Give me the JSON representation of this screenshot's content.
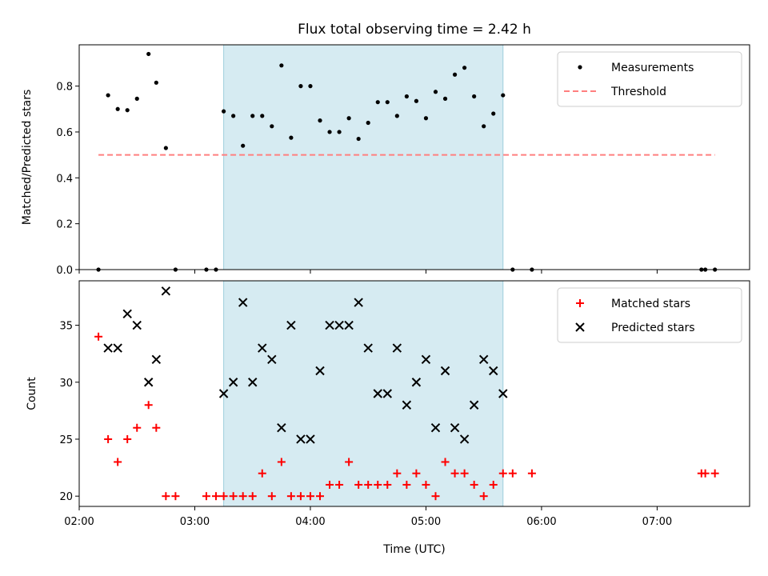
{
  "chart_data": [
    {
      "type": "scatter",
      "title": "Flux total observing time = 2.42 h",
      "ylabel": "Matched/Predicted stars",
      "xlabel": "",
      "xlim": [
        "02:00",
        "07:48"
      ],
      "ylim": [
        0,
        0.98
      ],
      "yticks": [
        "0.0",
        "0.2",
        "0.4",
        "0.6",
        "0.8"
      ],
      "shaded_span": {
        "start": "03:15",
        "end": "05:40",
        "color": "#add8e6"
      },
      "legend_position": "upper right",
      "series": [
        {
          "name": "Measurements",
          "marker": "dot",
          "color": "#000000",
          "points": [
            [
              "02:10",
              0.0
            ],
            [
              "02:15",
              0.76
            ],
            [
              "02:20",
              0.7
            ],
            [
              "02:25",
              0.695
            ],
            [
              "02:30",
              0.745
            ],
            [
              "02:36",
              0.94
            ],
            [
              "02:40",
              0.815
            ],
            [
              "02:45",
              0.53
            ],
            [
              "02:50",
              0.0
            ],
            [
              "03:06",
              0.0
            ],
            [
              "03:11",
              0.0
            ],
            [
              "03:15",
              0.69
            ],
            [
              "03:20",
              0.67
            ],
            [
              "03:25",
              0.54
            ],
            [
              "03:30",
              0.67
            ],
            [
              "03:35",
              0.67
            ],
            [
              "03:40",
              0.625
            ],
            [
              "03:45",
              0.89
            ],
            [
              "03:50",
              0.575
            ],
            [
              "03:55",
              0.8
            ],
            [
              "04:00",
              0.8
            ],
            [
              "04:05",
              0.65
            ],
            [
              "04:10",
              0.6
            ],
            [
              "04:15",
              0.6
            ],
            [
              "04:20",
              0.66
            ],
            [
              "04:25",
              0.57
            ],
            [
              "04:30",
              0.64
            ],
            [
              "04:35",
              0.73
            ],
            [
              "04:40",
              0.73
            ],
            [
              "04:45",
              0.67
            ],
            [
              "04:50",
              0.755
            ],
            [
              "04:55",
              0.735
            ],
            [
              "05:00",
              0.66
            ],
            [
              "05:05",
              0.775
            ],
            [
              "05:10",
              0.745
            ],
            [
              "05:15",
              0.85
            ],
            [
              "05:20",
              0.88
            ],
            [
              "05:25",
              0.755
            ],
            [
              "05:30",
              0.625
            ],
            [
              "05:35",
              0.68
            ],
            [
              "05:40",
              0.76
            ],
            [
              "05:45",
              0.0
            ],
            [
              "05:55",
              0.0
            ],
            [
              "07:23",
              0.0
            ],
            [
              "07:25",
              0.0
            ],
            [
              "07:30",
              0.0
            ]
          ]
        },
        {
          "name": "Threshold",
          "marker": "dashed-line",
          "color": "#ff7f7f",
          "points": [
            [
              "02:10",
              0.5
            ],
            [
              "07:30",
              0.5
            ]
          ]
        }
      ]
    },
    {
      "type": "scatter",
      "title": "",
      "ylabel": "Count",
      "xlabel": "Time (UTC)",
      "xlim": [
        "02:00",
        "07:48"
      ],
      "ylim": [
        19.1,
        38.9
      ],
      "yticks": [
        "20",
        "25",
        "30",
        "35"
      ],
      "xticks": [
        "02:00",
        "03:00",
        "04:00",
        "05:00",
        "06:00",
        "07:00"
      ],
      "shaded_span": {
        "start": "03:15",
        "end": "05:40",
        "color": "#add8e6"
      },
      "legend_position": "upper right",
      "series": [
        {
          "name": "Matched stars",
          "marker": "plus",
          "color": "#ff0000",
          "points": [
            [
              "02:10",
              34
            ],
            [
              "02:15",
              25
            ],
            [
              "02:20",
              23
            ],
            [
              "02:25",
              25
            ],
            [
              "02:30",
              26
            ],
            [
              "02:36",
              28
            ],
            [
              "02:40",
              26
            ],
            [
              "02:45",
              20
            ],
            [
              "02:50",
              20
            ],
            [
              "03:06",
              20
            ],
            [
              "03:11",
              20
            ],
            [
              "03:15",
              20
            ],
            [
              "03:20",
              20
            ],
            [
              "03:25",
              20
            ],
            [
              "03:30",
              20
            ],
            [
              "03:35",
              22
            ],
            [
              "03:40",
              20
            ],
            [
              "03:45",
              23
            ],
            [
              "03:50",
              20
            ],
            [
              "03:55",
              20
            ],
            [
              "04:00",
              20
            ],
            [
              "04:05",
              20
            ],
            [
              "04:10",
              21
            ],
            [
              "04:15",
              21
            ],
            [
              "04:20",
              23
            ],
            [
              "04:25",
              21
            ],
            [
              "04:30",
              21
            ],
            [
              "04:35",
              21
            ],
            [
              "04:40",
              21
            ],
            [
              "04:45",
              22
            ],
            [
              "04:50",
              21
            ],
            [
              "04:55",
              22
            ],
            [
              "05:00",
              21
            ],
            [
              "05:05",
              20
            ],
            [
              "05:10",
              23
            ],
            [
              "05:15",
              22
            ],
            [
              "05:20",
              22
            ],
            [
              "05:25",
              21
            ],
            [
              "05:30",
              20
            ],
            [
              "05:35",
              21
            ],
            [
              "05:40",
              22
            ],
            [
              "05:45",
              22
            ],
            [
              "05:55",
              22
            ],
            [
              "07:23",
              22
            ],
            [
              "07:25",
              22
            ],
            [
              "07:30",
              22
            ]
          ]
        },
        {
          "name": "Predicted stars",
          "marker": "x",
          "color": "#000000",
          "points": [
            [
              "02:15",
              33
            ],
            [
              "02:20",
              33
            ],
            [
              "02:25",
              36
            ],
            [
              "02:30",
              35
            ],
            [
              "02:36",
              30
            ],
            [
              "02:40",
              32
            ],
            [
              "02:45",
              38
            ],
            [
              "03:15",
              29
            ],
            [
              "03:20",
              30
            ],
            [
              "03:25",
              37
            ],
            [
              "03:30",
              30
            ],
            [
              "03:35",
              33
            ],
            [
              "03:40",
              32
            ],
            [
              "03:45",
              26
            ],
            [
              "03:50",
              35
            ],
            [
              "03:55",
              25
            ],
            [
              "04:00",
              25
            ],
            [
              "04:05",
              31
            ],
            [
              "04:10",
              35
            ],
            [
              "04:15",
              35
            ],
            [
              "04:20",
              35
            ],
            [
              "04:25",
              37
            ],
            [
              "04:30",
              33
            ],
            [
              "04:35",
              29
            ],
            [
              "04:40",
              29
            ],
            [
              "04:45",
              33
            ],
            [
              "04:50",
              28
            ],
            [
              "04:55",
              30
            ],
            [
              "05:00",
              32
            ],
            [
              "05:05",
              26
            ],
            [
              "05:10",
              31
            ],
            [
              "05:15",
              26
            ],
            [
              "05:20",
              25
            ],
            [
              "05:25",
              28
            ],
            [
              "05:30",
              32
            ],
            [
              "05:35",
              31
            ],
            [
              "05:40",
              29
            ]
          ]
        }
      ]
    }
  ]
}
